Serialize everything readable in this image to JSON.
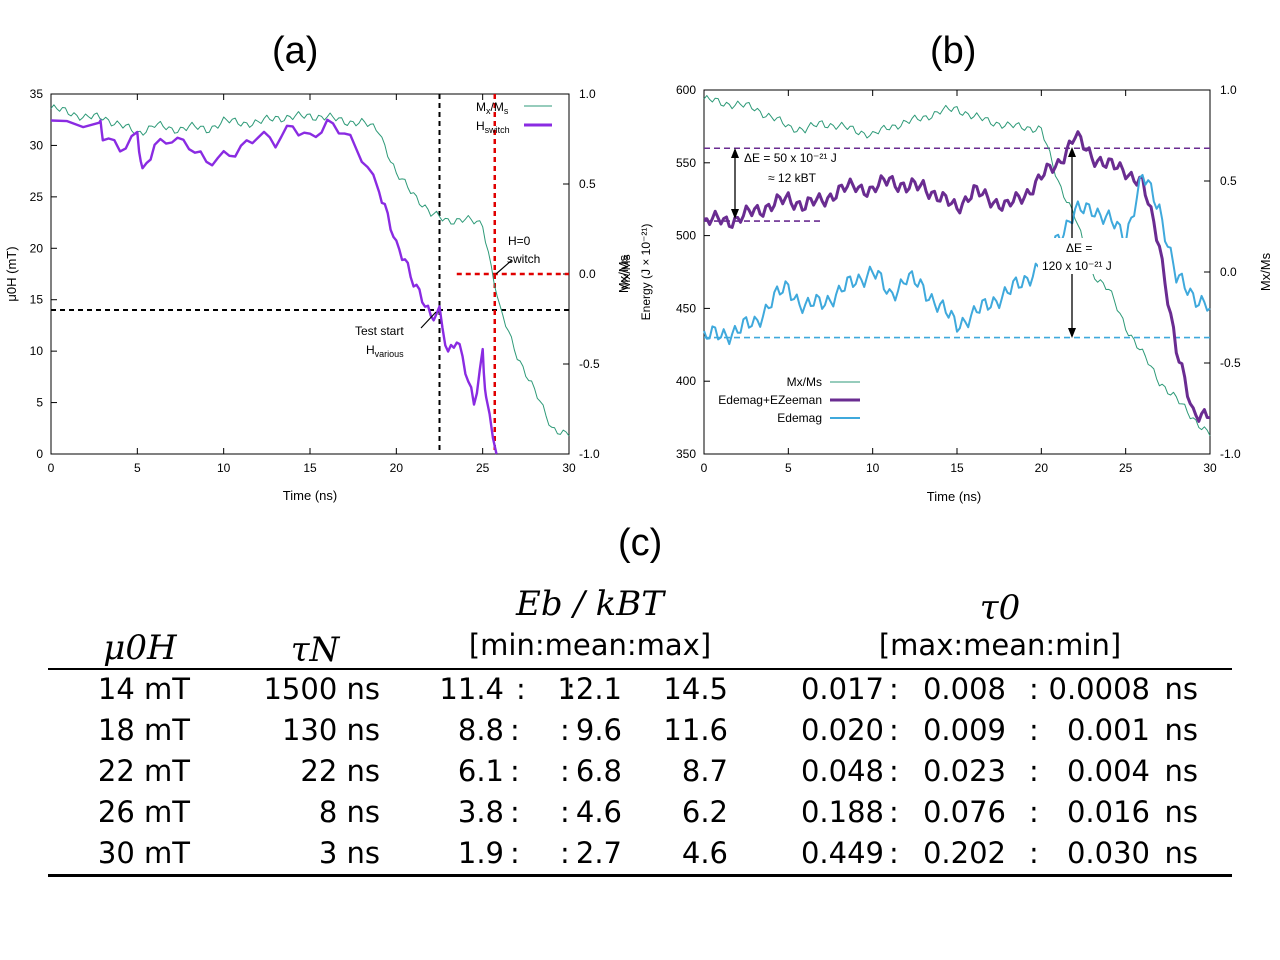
{
  "panels": {
    "a": "(a)",
    "b": "(b)",
    "c": "(c)"
  },
  "colors": {
    "mx": "#2e9a78",
    "hswitch": "#8a2be2",
    "etotal": "#6a2c91",
    "edemag": "#3fa9dc",
    "red": "#e00000",
    "dashed_purple": "#6a2c91",
    "dashed_blue": "#3fa9dc"
  },
  "chart_data": [
    {
      "id": "a",
      "type": "line",
      "xlabel": "Time (ns)",
      "ylabel_left": "μ0H (mT)",
      "ylabel_right": "Mx/Ms",
      "xlim": [
        0,
        30
      ],
      "ylim_left": [
        0,
        35
      ],
      "ylim_right": [
        -1.0,
        1.0
      ],
      "xticks": [
        "0",
        "5",
        "10",
        "15",
        "20",
        "25",
        "30"
      ],
      "yticks_left": [
        "0",
        "5",
        "10",
        "15",
        "20",
        "25",
        "30",
        "35"
      ],
      "yticks_right": [
        "-1.0",
        "-0.5",
        "0.0",
        "0.5",
        "1.0"
      ],
      "legend": [
        {
          "main": "M",
          "sub1": "x",
          "mid": "/M",
          "sub2": "s"
        },
        {
          "main": "H",
          "sub1": "switch",
          "mid": "",
          "sub2": ""
        }
      ],
      "annotations": {
        "h0_line1": "H=0",
        "h0_line2": "switch",
        "test_line1": "Test start",
        "test_line2_main": "H",
        "test_line2_sub": "various"
      },
      "series": [
        {
          "name": "Mx/Ms",
          "axis": "right",
          "x": [
            0,
            1,
            2,
            3,
            4,
            5,
            6,
            7,
            8,
            9,
            10,
            11,
            12,
            13,
            14,
            15,
            16,
            17,
            18,
            19,
            20,
            21,
            22,
            23,
            24,
            25,
            26,
            27,
            28,
            29,
            30
          ],
          "y": [
            0.92,
            0.9,
            0.87,
            0.87,
            0.83,
            0.78,
            0.83,
            0.8,
            0.82,
            0.8,
            0.85,
            0.84,
            0.84,
            0.87,
            0.87,
            0.88,
            0.87,
            0.85,
            0.84,
            0.8,
            0.55,
            0.45,
            0.33,
            0.3,
            0.3,
            0.28,
            -0.2,
            -0.45,
            -0.65,
            -0.85,
            -0.9
          ]
        },
        {
          "name": "Hswitch",
          "axis": "left",
          "x": [
            0,
            2.8,
            3,
            4,
            5,
            5.3,
            6,
            7,
            8,
            9,
            10,
            11,
            12,
            13,
            14,
            15,
            16,
            17,
            18,
            19,
            19.5,
            20,
            20.5,
            21,
            21.5,
            22,
            22.5,
            23,
            23.5,
            24,
            24.5,
            25,
            25.2,
            25.8
          ],
          "y": [
            32,
            32,
            31,
            30,
            31,
            27,
            30,
            31,
            30,
            28,
            29,
            30,
            31,
            30,
            32,
            31,
            32,
            31,
            29,
            26,
            23,
            20,
            19,
            17,
            15,
            13,
            14,
            10,
            11,
            8,
            5,
            10,
            5,
            0
          ]
        }
      ],
      "vlines": [
        {
          "x": 22.5,
          "style": "black"
        },
        {
          "x": 25.7,
          "style": "red"
        }
      ],
      "hlines": [
        {
          "y_left": 14,
          "style": "black"
        },
        {
          "y_right": 0.0,
          "x_from": 23.5,
          "style": "red"
        }
      ]
    },
    {
      "id": "b",
      "type": "line",
      "xlabel": "Time (ns)",
      "ylabel_left_line1": "Mx/Ms",
      "ylabel_left_line2": "Energy (J × 10⁻²¹)",
      "ylabel_right": "Mx/Ms",
      "xlim": [
        0,
        30
      ],
      "ylim_left": [
        350,
        600
      ],
      "ylim_right": [
        -1.0,
        1.0
      ],
      "xticks": [
        "0",
        "5",
        "10",
        "15",
        "20",
        "25",
        "30"
      ],
      "yticks_left": [
        "350",
        "400",
        "450",
        "500",
        "550",
        "600"
      ],
      "yticks_right": [
        "-1.0",
        "-0.5",
        "0.0",
        "0.5",
        "1.0"
      ],
      "legend": [
        {
          "label": "Mx/Ms"
        },
        {
          "label": "Edemag+EZeeman"
        },
        {
          "label": "Edemag"
        }
      ],
      "annotations": {
        "de1_line1": "ΔE = 50 x 10⁻²¹ J",
        "de1_line2": "≈ 12 kBT",
        "de2_line1": "ΔE =",
        "de2_line2": "120 x 10⁻²¹ J"
      },
      "series": [
        {
          "name": "Mx/Ms",
          "axis": "right",
          "x": [
            0,
            1,
            2,
            3,
            4,
            5,
            6,
            7,
            8,
            9,
            10,
            11,
            12,
            13,
            14,
            15,
            16,
            17,
            18,
            19,
            20,
            21,
            22,
            23,
            24,
            25,
            26,
            27,
            28,
            29,
            30
          ],
          "y": [
            0.95,
            0.93,
            0.92,
            0.9,
            0.85,
            0.8,
            0.78,
            0.82,
            0.8,
            0.78,
            0.75,
            0.8,
            0.82,
            0.85,
            0.88,
            0.9,
            0.85,
            0.83,
            0.8,
            0.8,
            0.78,
            0.5,
            0.3,
            0.0,
            -0.1,
            -0.3,
            -0.45,
            -0.6,
            -0.7,
            -0.8,
            -0.9
          ]
        },
        {
          "name": "Edemag+EZeeman",
          "axis": "left",
          "x": [
            0,
            1,
            2,
            3,
            4,
            5,
            6,
            7,
            8,
            9,
            10,
            11,
            12,
            13,
            14,
            15,
            16,
            17,
            18,
            19,
            20,
            21,
            22,
            23,
            24,
            25,
            26,
            27,
            28,
            29,
            30
          ],
          "y": [
            508,
            512,
            510,
            518,
            520,
            526,
            520,
            525,
            530,
            535,
            530,
            540,
            532,
            535,
            525,
            520,
            530,
            525,
            520,
            528,
            540,
            550,
            568,
            555,
            548,
            545,
            535,
            495,
            420,
            380,
            375
          ]
        },
        {
          "name": "Edemag",
          "axis": "left",
          "x": [
            0,
            1,
            2,
            3,
            4,
            5,
            6,
            7,
            8,
            9,
            10,
            11,
            12,
            13,
            14,
            15,
            16,
            17,
            18,
            19,
            20,
            21,
            22,
            23,
            24,
            25,
            26,
            27,
            28,
            29,
            30
          ],
          "y": [
            430,
            432,
            435,
            440,
            455,
            465,
            450,
            455,
            460,
            470,
            475,
            460,
            470,
            465,
            450,
            440,
            445,
            455,
            460,
            470,
            480,
            500,
            515,
            520,
            510,
            500,
            540,
            520,
            470,
            460,
            450
          ]
        }
      ],
      "hlines": [
        {
          "y_left": 560,
          "style": "purple"
        },
        {
          "y_left": 510,
          "x_to": 7,
          "style": "purple"
        },
        {
          "y_left": 430,
          "style": "blue"
        }
      ]
    },
    {
      "id": "c",
      "type": "table",
      "headers": {
        "col1": "μ0H",
        "col2": "τN",
        "col3_line1": "Eb / kBT",
        "col3_line2": "[min:mean:max]",
        "col4_line1": "τ0",
        "col4_line2": "[max:mean:min]"
      },
      "rows": [
        {
          "h": "14 mT",
          "tau": "1500 ns",
          "e_min": "11.4",
          "e_mean": "12.1",
          "e_max": "14.5",
          "t_max": "0.017",
          "t_mean": "0.008",
          "t_min": "0.0008",
          "unit": "ns"
        },
        {
          "h": "18 mT",
          "tau": "130 ns",
          "e_min": "8.8",
          "e_mean": "9.6",
          "e_max": "11.6",
          "t_max": "0.020",
          "t_mean": "0.009",
          "t_min": "0.001",
          "unit": "ns"
        },
        {
          "h": "22 mT",
          "tau": "22 ns",
          "e_min": "6.1",
          "e_mean": "6.8",
          "e_max": "8.7",
          "t_max": "0.048",
          "t_mean": "0.023",
          "t_min": "0.004",
          "unit": "ns"
        },
        {
          "h": "26 mT",
          "tau": "8 ns",
          "e_min": "3.8",
          "e_mean": "4.6",
          "e_max": "6.2",
          "t_max": "0.188",
          "t_mean": "0.076",
          "t_min": "0.016",
          "unit": "ns"
        },
        {
          "h": "30 mT",
          "tau": "3 ns",
          "e_min": "1.9",
          "e_mean": "2.7",
          "e_max": "4.6",
          "t_max": "0.449",
          "t_mean": "0.202",
          "t_min": "0.030",
          "unit": "ns"
        }
      ]
    }
  ]
}
